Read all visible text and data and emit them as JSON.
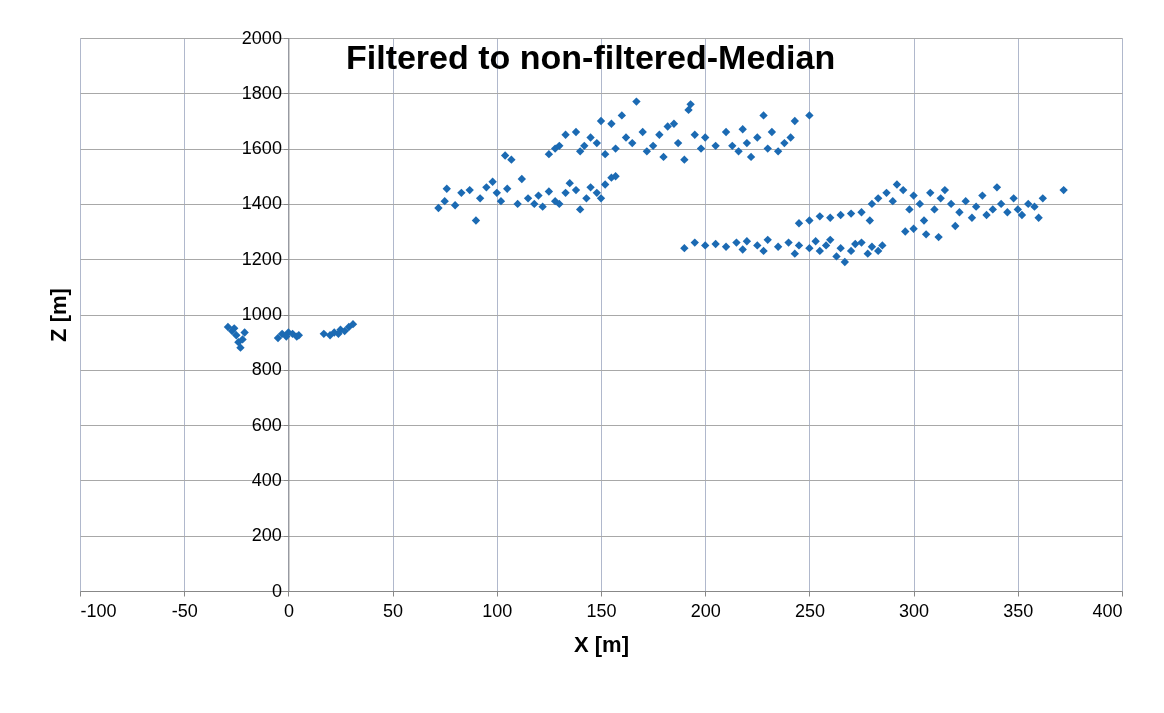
{
  "chart_data": {
    "type": "scatter",
    "title": "Filtered to non-filtered-Median",
    "xlabel": "X [m]",
    "ylabel": "Z [m]",
    "xlim": [
      -100,
      400
    ],
    "xticks": [
      -100,
      -50,
      0,
      50,
      100,
      150,
      200,
      250,
      300,
      350,
      400
    ],
    "ylim": [
      0,
      2000
    ],
    "yticks": [
      0,
      200,
      400,
      600,
      800,
      1000,
      1200,
      1400,
      1600,
      1800,
      2000
    ],
    "grid": true,
    "marker": "diamond",
    "series": [
      {
        "color": "#1b6ab3",
        "x": [
          -29,
          -27,
          -25,
          -24,
          -23,
          -22,
          -26,
          -21,
          -5,
          -3,
          0,
          2,
          4,
          5,
          -1,
          17,
          20,
          22,
          25,
          27,
          29,
          31,
          24,
          72,
          75,
          76,
          80,
          83,
          87,
          90,
          92,
          95,
          98,
          100,
          102,
          104,
          105,
          107,
          110,
          112,
          115,
          118,
          120,
          122,
          125,
          128,
          130,
          133,
          135,
          138,
          140,
          143,
          145,
          148,
          150,
          152,
          155,
          157,
          125,
          128,
          130,
          133,
          138,
          140,
          142,
          145,
          148,
          150,
          152,
          155,
          157,
          160,
          162,
          165,
          167,
          170,
          172,
          175,
          178,
          180,
          182,
          185,
          187,
          190,
          192,
          193,
          195,
          198,
          200,
          205,
          210,
          213,
          216,
          218,
          220,
          222,
          225,
          228,
          230,
          232,
          235,
          238,
          241,
          243,
          250,
          190,
          195,
          200,
          205,
          210,
          215,
          218,
          220,
          225,
          228,
          230,
          235,
          240,
          243,
          245,
          250,
          253,
          255,
          258,
          260,
          263,
          265,
          267,
          270,
          272,
          275,
          278,
          280,
          283,
          285,
          245,
          250,
          255,
          260,
          265,
          270,
          275,
          279,
          280,
          283,
          287,
          290,
          292,
          295,
          298,
          300,
          300,
          303,
          305,
          308,
          310,
          312,
          313,
          315,
          318,
          320,
          322,
          325,
          328,
          330,
          333,
          335,
          338,
          340,
          342,
          345,
          348,
          350,
          352,
          355,
          358,
          360,
          362,
          372,
          296,
          306
        ],
        "values": [
          955,
          940,
          925,
          900,
          880,
          910,
          950,
          935,
          915,
          930,
          935,
          930,
          920,
          925,
          920,
          930,
          925,
          935,
          945,
          940,
          955,
          965,
          930,
          1385,
          1410,
          1455,
          1395,
          1440,
          1450,
          1340,
          1420,
          1460,
          1480,
          1440,
          1410,
          1575,
          1455,
          1560,
          1400,
          1490,
          1420,
          1400,
          1430,
          1390,
          1445,
          1410,
          1400,
          1440,
          1475,
          1450,
          1380,
          1420,
          1460,
          1440,
          1420,
          1470,
          1495,
          1500,
          1580,
          1600,
          1610,
          1650,
          1660,
          1590,
          1610,
          1640,
          1620,
          1700,
          1580,
          1690,
          1600,
          1720,
          1640,
          1620,
          1770,
          1660,
          1590,
          1610,
          1650,
          1570,
          1680,
          1690,
          1620,
          1560,
          1740,
          1760,
          1650,
          1600,
          1640,
          1610,
          1660,
          1610,
          1590,
          1670,
          1620,
          1570,
          1640,
          1720,
          1600,
          1660,
          1590,
          1620,
          1640,
          1700,
          1720,
          1240,
          1260,
          1250,
          1255,
          1245,
          1260,
          1235,
          1265,
          1250,
          1230,
          1270,
          1245,
          1260,
          1220,
          1250,
          1240,
          1265,
          1230,
          1250,
          1270,
          1210,
          1240,
          1190,
          1230,
          1255,
          1260,
          1220,
          1245,
          1230,
          1250,
          1330,
          1340,
          1355,
          1350,
          1360,
          1365,
          1370,
          1340,
          1400,
          1420,
          1440,
          1410,
          1470,
          1450,
          1380,
          1430,
          1310,
          1400,
          1340,
          1440,
          1380,
          1280,
          1420,
          1450,
          1400,
          1320,
          1370,
          1410,
          1350,
          1390,
          1430,
          1360,
          1380,
          1460,
          1400,
          1370,
          1420,
          1380,
          1360,
          1400,
          1390,
          1350,
          1420,
          1450,
          1300,
          1290
        ]
      }
    ]
  }
}
